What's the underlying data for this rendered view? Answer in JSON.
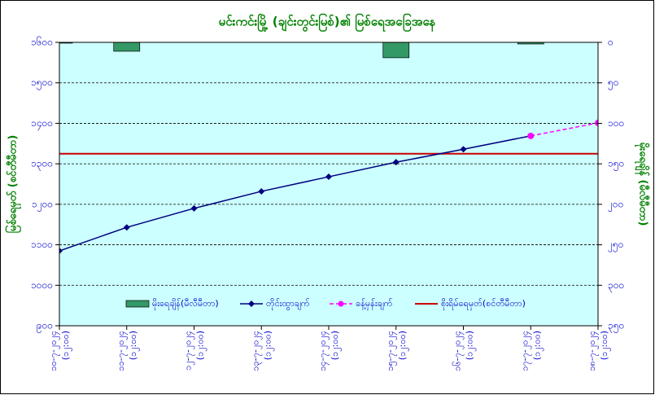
{
  "chart_data": {
    "type": "combo",
    "title": "မင်းကင်းမြို့ (ချင်းတွင်းမြစ်)၏ မြစ်ရေအခြေအနေ",
    "y_label": "မြစ်ရေမှတ် (စင်တီမီတာ)",
    "y2_label": "မိုးရေချိန် (မီလီမီတာ)",
    "categories": [
      [
        "၁၀-၇-၂၀၂၄",
        "(၁၂:၀၀)"
      ],
      [
        "၁၁-၇-၂၀၂၄",
        "(၁၂:၀၀)"
      ],
      [
        "၁၂-၇-၂၀၂၄",
        "(၁၂:၀၀)"
      ],
      [
        "၁၃-၇-၂၀၂၄",
        "(၁၂:၀၀)"
      ],
      [
        "၁၄-၇-၂၀၂၄",
        "(၁၂:၀၀)"
      ],
      [
        "၁၅-၇-၂၀၂၄",
        "(၁၂:၀၀)"
      ],
      [
        "၁၆-၇-၂၀၂၄",
        "(၁၂:၀၀)"
      ],
      [
        "၁၇-၇-၂၀၂၄",
        "(၁၂:၀၀)"
      ],
      [
        "၁၈-၇-၂၀၂၄",
        "(၁၂:၀၀)"
      ]
    ],
    "series": [
      {
        "name": "မိုးရေချိန်(မီလီမီတာ)",
        "kind": "bar",
        "axis": "y2",
        "color": "#339966",
        "values": [
          1,
          11,
          0,
          0,
          0,
          19,
          0,
          2,
          0
        ]
      },
      {
        "name": "တိုင်းထွာချက်",
        "kind": "line",
        "color": "#000080",
        "marker": "diamond",
        "values": [
          1085,
          1143,
          1190,
          1232,
          1268,
          1304,
          1336,
          1369,
          null
        ]
      },
      {
        "name": "ခန့်မှန်းချက်",
        "kind": "line",
        "color": "#ff00ff",
        "marker": "circle",
        "dashed": true,
        "values": [
          null,
          null,
          null,
          null,
          null,
          null,
          null,
          1369,
          1401
        ]
      }
    ],
    "danger_level": {
      "name": "စိုးရိမ်ရေမှတ်(စင်တီမီတာ)",
      "value": 1325,
      "color": "#cc0000"
    },
    "ylim": [
      900,
      1600
    ],
    "yticks": [
      {
        "value": 1600,
        "label": "၁၆၀၀"
      },
      {
        "value": 1500,
        "label": "၁၅၀၀"
      },
      {
        "value": 1400,
        "label": "၁၄၀၀"
      },
      {
        "value": 1300,
        "label": "၁၃၀၀"
      },
      {
        "value": 1200,
        "label": "၁၂၀၀"
      },
      {
        "value": 1100,
        "label": "၁၁၀၀"
      },
      {
        "value": 1000,
        "label": "၁၀၀၀"
      },
      {
        "value": 900,
        "label": "၉၀၀"
      }
    ],
    "y2lim": [
      0,
      350
    ],
    "y2_inverted": true,
    "y2ticks": [
      {
        "value": 0,
        "label": "၀"
      },
      {
        "value": 50,
        "label": "၅၀"
      },
      {
        "value": 100,
        "label": "၁၀၀"
      },
      {
        "value": 150,
        "label": "၁၅၀"
      },
      {
        "value": 200,
        "label": "၂၀၀"
      },
      {
        "value": 250,
        "label": "၂၅၀"
      },
      {
        "value": 300,
        "label": "၃၀၀"
      },
      {
        "value": 350,
        "label": "၃၅၀"
      }
    ],
    "grid": true
  }
}
